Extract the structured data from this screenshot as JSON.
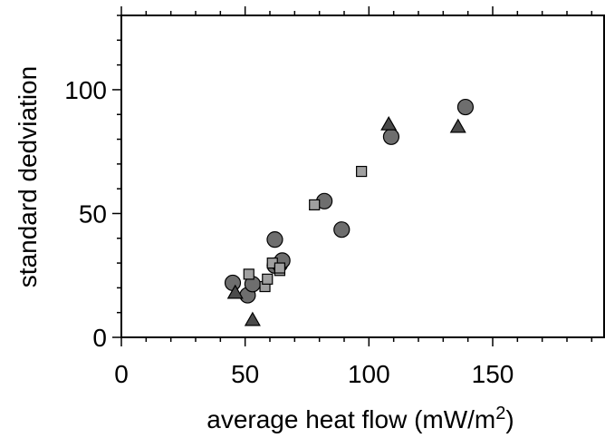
{
  "chart_data": {
    "type": "scatter",
    "title": "",
    "xlabel": "average heat flow (mW/m",
    "xlabel_superscript": "2",
    "xlabel_suffix": ")",
    "ylabel": "standard dedviation",
    "xlim": [
      0,
      195
    ],
    "ylim": [
      0,
      130
    ],
    "x_ticks": [
      0,
      50,
      100,
      150
    ],
    "y_ticks": [
      0,
      50,
      100
    ],
    "x_tick_labels": [
      "0",
      "50",
      "100",
      "150"
    ],
    "y_tick_labels": [
      "0",
      "50",
      "100"
    ],
    "grid": false,
    "legend": "none",
    "series": [
      {
        "marker": "circle",
        "color": "#6e6e6e",
        "points": [
          [
            45,
            22
          ],
          [
            51,
            17
          ],
          [
            53,
            21.5
          ],
          [
            62,
            29
          ],
          [
            62,
            39.5
          ],
          [
            64,
            29.5
          ],
          [
            65,
            31
          ],
          [
            82,
            55
          ],
          [
            89,
            43.5
          ],
          [
            109,
            81
          ],
          [
            139,
            93
          ]
        ]
      },
      {
        "marker": "square",
        "color": "#a0a0a0",
        "points": [
          [
            51.5,
            25.5
          ],
          [
            58,
            20.5
          ],
          [
            59,
            23.5
          ],
          [
            61,
            30
          ],
          [
            64,
            27
          ],
          [
            64,
            28
          ],
          [
            78,
            53.5
          ],
          [
            97,
            67
          ]
        ]
      },
      {
        "marker": "triangle",
        "color": "#4a4a4a",
        "points": [
          [
            46,
            18
          ],
          [
            53,
            7
          ],
          [
            108,
            86
          ],
          [
            136,
            85
          ]
        ]
      }
    ]
  }
}
